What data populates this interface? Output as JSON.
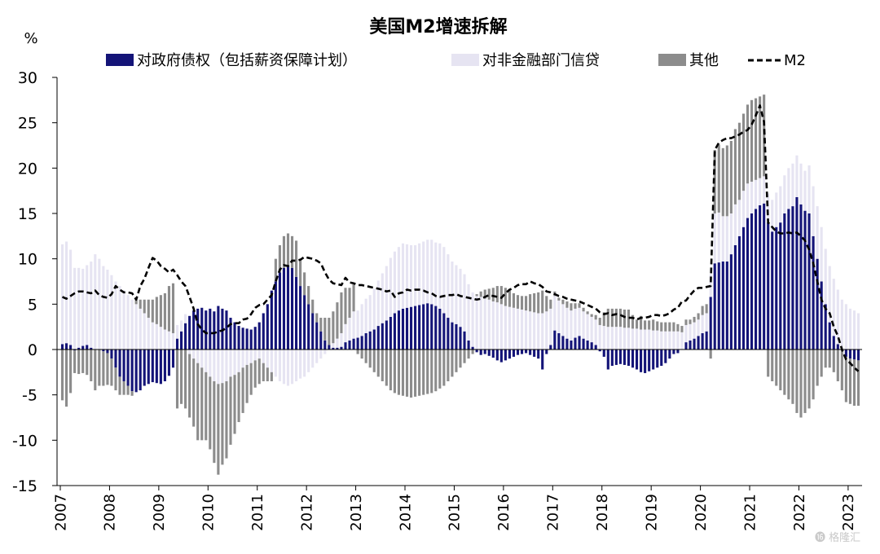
{
  "chart_data": {
    "type": "bar",
    "title": "美国M2增速拆解",
    "ylabel": "%",
    "ylim": [
      -15,
      30
    ],
    "yticks": [
      30,
      25,
      20,
      15,
      10,
      5,
      0,
      -5,
      -10,
      -15
    ],
    "xticks": [
      "2007",
      "2008",
      "2009",
      "2010",
      "2011",
      "2012",
      "2013",
      "2014",
      "2015",
      "2016",
      "2017",
      "2018",
      "2019",
      "2020",
      "2021",
      "2022",
      "2023"
    ],
    "legend_position": "top",
    "stacked": true,
    "x": [
      "2007-01",
      "2007-02",
      "2007-03",
      "2007-04",
      "2007-05",
      "2007-06",
      "2007-07",
      "2007-08",
      "2007-09",
      "2007-10",
      "2007-11",
      "2007-12",
      "2008-01",
      "2008-02",
      "2008-03",
      "2008-04",
      "2008-05",
      "2008-06",
      "2008-07",
      "2008-08",
      "2008-09",
      "2008-10",
      "2008-11",
      "2008-12",
      "2009-01",
      "2009-02",
      "2009-03",
      "2009-04",
      "2009-05",
      "2009-06",
      "2009-07",
      "2009-08",
      "2009-09",
      "2009-10",
      "2009-11",
      "2009-12",
      "2010-01",
      "2010-02",
      "2010-03",
      "2010-04",
      "2010-05",
      "2010-06",
      "2010-07",
      "2010-08",
      "2010-09",
      "2010-10",
      "2010-11",
      "2010-12",
      "2011-01",
      "2011-02",
      "2011-03",
      "2011-04",
      "2011-05",
      "2011-06",
      "2011-07",
      "2011-08",
      "2011-09",
      "2011-10",
      "2011-11",
      "2011-12",
      "2012-01",
      "2012-02",
      "2012-03",
      "2012-04",
      "2012-05",
      "2012-06",
      "2012-07",
      "2012-08",
      "2012-09",
      "2012-10",
      "2012-11",
      "2012-12",
      "2013-01",
      "2013-02",
      "2013-03",
      "2013-04",
      "2013-05",
      "2013-06",
      "2013-07",
      "2013-08",
      "2013-09",
      "2013-10",
      "2013-11",
      "2013-12",
      "2014-01",
      "2014-02",
      "2014-03",
      "2014-04",
      "2014-05",
      "2014-06",
      "2014-07",
      "2014-08",
      "2014-09",
      "2014-10",
      "2014-11",
      "2014-12",
      "2015-01",
      "2015-02",
      "2015-03",
      "2015-04",
      "2015-05",
      "2015-06",
      "2015-07",
      "2015-08",
      "2015-09",
      "2015-10",
      "2015-11",
      "2015-12",
      "2016-01",
      "2016-02",
      "2016-03",
      "2016-04",
      "2016-05",
      "2016-06",
      "2016-07",
      "2016-08",
      "2016-09",
      "2016-10",
      "2016-11",
      "2016-12",
      "2017-01",
      "2017-02",
      "2017-03",
      "2017-04",
      "2017-05",
      "2017-06",
      "2017-07",
      "2017-08",
      "2017-09",
      "2017-10",
      "2017-11",
      "2017-12",
      "2018-01",
      "2018-02",
      "2018-03",
      "2018-04",
      "2018-05",
      "2018-06",
      "2018-07",
      "2018-08",
      "2018-09",
      "2018-10",
      "2018-11",
      "2018-12",
      "2019-01",
      "2019-02",
      "2019-03",
      "2019-04",
      "2019-05",
      "2019-06",
      "2019-07",
      "2019-08",
      "2019-09",
      "2019-10",
      "2019-11",
      "2019-12",
      "2020-01",
      "2020-02",
      "2020-03",
      "2020-04",
      "2020-05",
      "2020-06",
      "2020-07",
      "2020-08",
      "2020-09",
      "2020-10",
      "2020-11",
      "2020-12",
      "2021-01",
      "2021-02",
      "2021-03",
      "2021-04",
      "2021-05",
      "2021-06",
      "2021-07",
      "2021-08",
      "2021-09",
      "2021-10",
      "2021-11",
      "2021-12",
      "2022-01",
      "2022-02",
      "2022-03",
      "2022-04",
      "2022-05",
      "2022-06",
      "2022-07",
      "2022-08",
      "2022-09",
      "2022-10",
      "2022-11",
      "2022-12",
      "2023-01",
      "2023-02",
      "2023-03"
    ],
    "series": [
      {
        "name": "对政府债权（包括薪资保障计划）",
        "kind": "bar",
        "color": "#141478",
        "values": [
          0.6,
          0.7,
          0.5,
          -0.1,
          0.2,
          0.4,
          0.5,
          0.2,
          0.0,
          0.0,
          -0.2,
          -0.4,
          -1.0,
          -2.0,
          -3.0,
          -3.5,
          -4.0,
          -4.6,
          -4.7,
          -4.5,
          -4.0,
          -3.8,
          -3.6,
          -3.7,
          -3.8,
          -3.5,
          -2.9,
          -2.0,
          1.2,
          2.0,
          2.9,
          3.7,
          4.3,
          4.5,
          4.6,
          4.3,
          4.5,
          4.2,
          4.8,
          4.5,
          4.3,
          3.5,
          3.0,
          2.6,
          2.4,
          2.3,
          2.2,
          2.5,
          3.0,
          4.0,
          5.0,
          6.5,
          7.5,
          8.5,
          9.0,
          9.3,
          9.0,
          8.0,
          7.0,
          6.0,
          5.0,
          4.0,
          3.0,
          2.0,
          1.0,
          0.5,
          0.2,
          0.2,
          0.3,
          0.8,
          1.0,
          1.2,
          1.3,
          1.5,
          1.8,
          2.0,
          2.2,
          2.6,
          2.9,
          3.2,
          3.6,
          4.0,
          4.3,
          4.5,
          4.6,
          4.7,
          4.8,
          4.9,
          5.0,
          5.1,
          5.0,
          4.8,
          4.5,
          4.0,
          3.5,
          3.0,
          2.8,
          2.5,
          2.0,
          1.0,
          0.3,
          -0.3,
          -0.6,
          -0.5,
          -0.7,
          -0.9,
          -1.2,
          -1.4,
          -1.2,
          -1.0,
          -0.8,
          -0.6,
          -0.5,
          -0.4,
          -0.6,
          -0.8,
          -1.0,
          -2.2,
          -0.5,
          0.5,
          2.1,
          1.8,
          1.5,
          1.2,
          1.0,
          1.3,
          1.5,
          1.2,
          1.0,
          0.8,
          0.5,
          -0.2,
          -0.8,
          -2.2,
          -1.8,
          -1.7,
          -1.6,
          -1.7,
          -1.8,
          -2.0,
          -2.2,
          -2.5,
          -2.6,
          -2.4,
          -2.2,
          -2.0,
          -1.8,
          -1.5,
          -1.0,
          -0.5,
          -0.4,
          0.0,
          0.8,
          1.0,
          1.2,
          1.5,
          1.8,
          2.0,
          5.8,
          9.5,
          9.6,
          9.7,
          9.7,
          10.5,
          11.5,
          12.5,
          13.5,
          14.5,
          15.0,
          15.5,
          15.9,
          16.1,
          14.0,
          13.0,
          13.5,
          14.0,
          15.0,
          15.5,
          15.8,
          16.8,
          16.0,
          15.3,
          15.0,
          12.5,
          10.0,
          7.5,
          5.0,
          3.0,
          1.5,
          0.6,
          0.0,
          -0.8,
          -1.0,
          -1.1,
          -1.2
        ]
      },
      {
        "name": "对非金融部门信贷",
        "kind": "bar",
        "color": "#e6e4f2",
        "values": [
          11.0,
          11.2,
          10.5,
          9.0,
          8.8,
          8.5,
          8.8,
          9.5,
          10.5,
          10.0,
          9.2,
          8.8,
          8.2,
          7.5,
          7.0,
          6.5,
          6.0,
          5.5,
          5.0,
          4.5,
          4.0,
          3.5,
          3.0,
          2.8,
          2.5,
          2.2,
          2.0,
          1.8,
          1.5,
          1.2,
          1.0,
          -0.5,
          -1.0,
          -1.5,
          -2.0,
          -2.5,
          -3.0,
          -3.5,
          -3.8,
          -3.7,
          -3.5,
          -3.0,
          -2.8,
          -2.5,
          -2.0,
          -1.7,
          -1.5,
          -1.2,
          -1.0,
          -1.5,
          -2.0,
          -2.5,
          -3.0,
          -3.5,
          -3.8,
          -4.0,
          -3.8,
          -3.5,
          -3.2,
          -3.0,
          -2.5,
          -2.0,
          -1.5,
          -1.0,
          -0.5,
          0.0,
          0.5,
          1.0,
          1.5,
          2.0,
          2.5,
          3.0,
          3.0,
          3.5,
          3.8,
          4.0,
          4.5,
          5.0,
          5.5,
          6.0,
          6.5,
          6.8,
          7.0,
          7.2,
          7.0,
          6.8,
          6.7,
          6.8,
          6.9,
          7.0,
          7.1,
          7.0,
          7.2,
          7.3,
          7.0,
          6.7,
          6.5,
          6.4,
          6.3,
          6.2,
          6.0,
          5.9,
          5.8,
          5.6,
          5.5,
          5.3,
          5.2,
          5.0,
          4.8,
          4.7,
          4.6,
          4.5,
          4.4,
          4.3,
          4.2,
          4.1,
          4.0,
          4.0,
          4.2,
          4.0,
          3.8,
          3.6,
          3.5,
          3.4,
          3.3,
          3.2,
          3.1,
          3.0,
          2.9,
          2.8,
          2.8,
          2.7,
          2.6,
          2.5,
          2.5,
          2.5,
          2.5,
          2.4,
          2.4,
          2.3,
          2.3,
          2.2,
          2.2,
          2.2,
          2.1,
          2.1,
          2.0,
          2.0,
          2.0,
          2.0,
          2.0,
          1.9,
          1.9,
          1.8,
          1.8,
          1.8,
          2.0,
          2.0,
          2.5,
          5.5,
          5.5,
          5.0,
          5.0,
          4.5,
          4.5,
          4.0,
          4.0,
          3.8,
          3.5,
          3.2,
          3.0,
          3.0,
          3.2,
          3.5,
          3.8,
          4.0,
          4.2,
          4.5,
          4.7,
          4.6,
          4.5,
          4.4,
          5.3,
          5.5,
          5.8,
          6.0,
          6.1,
          6.2,
          6.3,
          6.0,
          5.5,
          5.0,
          4.5,
          4.3,
          4.0
        ]
      },
      {
        "name": "其他",
        "kind": "bar",
        "color": "#8c8c8c",
        "values": [
          -5.6,
          -6.3,
          -4.8,
          -2.5,
          -2.7,
          -2.6,
          -2.8,
          -3.5,
          -4.5,
          -4.0,
          -3.8,
          -3.5,
          -3.0,
          -2.5,
          -2.0,
          -1.5,
          -1.0,
          -0.5,
          0.5,
          1.0,
          1.5,
          2.0,
          2.5,
          3.0,
          3.5,
          4.0,
          5.0,
          5.5,
          -6.5,
          -6.0,
          -6.5,
          -7.0,
          -7.5,
          -8.5,
          -8.0,
          -7.5,
          -8.0,
          -9.0,
          -10.0,
          -9.0,
          -8.5,
          -7.5,
          -6.5,
          -5.5,
          -5.0,
          -4.2,
          -3.5,
          -3.0,
          -2.8,
          -2.0,
          -1.5,
          -1.0,
          2.5,
          3.0,
          3.5,
          3.5,
          3.5,
          4.0,
          3.0,
          2.5,
          2.0,
          1.5,
          1.0,
          1.5,
          2.5,
          3.0,
          3.5,
          4.0,
          4.5,
          4.0,
          3.3,
          3.0,
          -0.5,
          -1.0,
          -1.5,
          -2.0,
          -2.5,
          -3.0,
          -3.5,
          -4.0,
          -4.5,
          -4.8,
          -5.0,
          -5.1,
          -5.2,
          -5.3,
          -5.2,
          -5.1,
          -5.0,
          -4.9,
          -4.8,
          -4.6,
          -4.3,
          -4.0,
          -3.5,
          -3.0,
          -2.5,
          -2.0,
          -1.5,
          -1.0,
          -0.5,
          0.2,
          0.6,
          1.0,
          1.2,
          1.5,
          1.8,
          2.0,
          2.0,
          1.8,
          1.6,
          1.5,
          1.5,
          1.6,
          1.9,
          2.1,
          2.3,
          2.5,
          1.7,
          1.0,
          0.5,
          0.3,
          0.5,
          0.7,
          0.8,
          0.6,
          0.5,
          0.4,
          0.3,
          0.3,
          0.5,
          0.8,
          1.5,
          2.0,
          2.0,
          2.0,
          2.0,
          2.0,
          2.0,
          1.5,
          1.0,
          1.5,
          1.0,
          1.0,
          1.2,
          1.0,
          1.0,
          1.0,
          1.0,
          1.0,
          0.8,
          0.7,
          0.6,
          0.5,
          0.6,
          0.7,
          1.0,
          1.0,
          -1.0,
          7.0,
          7.5,
          7.5,
          7.8,
          8.0,
          8.3,
          8.5,
          8.5,
          8.7,
          9.0,
          9.0,
          9.0,
          9.0,
          -3.0,
          -3.5,
          -4.0,
          -4.5,
          -5.0,
          -5.5,
          -6.0,
          -7.0,
          -7.5,
          -7.0,
          -6.5,
          -5.5,
          -4.0,
          -3.0,
          -2.0,
          -2.0,
          -2.5,
          -3.5,
          -4.5,
          -5.0,
          -5.0,
          -5.1,
          -5.0
        ]
      },
      {
        "name": "M2",
        "kind": "line",
        "style": "dashed",
        "color": "#000000",
        "values": [
          5.8,
          5.6,
          5.9,
          6.2,
          6.4,
          6.4,
          6.3,
          6.2,
          6.5,
          6.0,
          5.8,
          5.7,
          6.1,
          7.0,
          6.6,
          6.3,
          6.3,
          6.2,
          5.5,
          7.0,
          7.8,
          9.0,
          10.1,
          9.8,
          9.2,
          8.9,
          8.5,
          8.8,
          8.2,
          7.5,
          7.0,
          5.8,
          4.5,
          2.8,
          2.2,
          1.8,
          1.8,
          1.8,
          2.0,
          2.1,
          2.4,
          2.8,
          2.9,
          2.9,
          3.3,
          3.4,
          3.9,
          4.6,
          4.9,
          5.0,
          5.5,
          6.0,
          7.5,
          8.8,
          9.3,
          9.2,
          9.8,
          9.8,
          9.9,
          10.2,
          10.1,
          10.0,
          9.8,
          9.5,
          8.5,
          7.7,
          7.3,
          7.2,
          7.1,
          7.9,
          7.4,
          7.3,
          7.1,
          7.1,
          7.0,
          6.9,
          6.8,
          6.7,
          6.6,
          6.4,
          6.5,
          5.8,
          6.2,
          6.3,
          6.6,
          6.5,
          6.6,
          6.6,
          6.5,
          6.3,
          6.2,
          5.9,
          5.8,
          5.9,
          6.0,
          6.0,
          6.1,
          5.9,
          5.8,
          5.7,
          5.6,
          5.5,
          5.6,
          5.8,
          6.0,
          5.9,
          5.8,
          5.7,
          6.2,
          6.6,
          6.8,
          7.1,
          7.2,
          7.2,
          7.5,
          7.3,
          7.2,
          6.9,
          6.4,
          6.3,
          6.1,
          5.9,
          5.8,
          5.6,
          5.5,
          5.4,
          5.3,
          5.1,
          4.9,
          4.7,
          4.5,
          4.1,
          3.9,
          4.0,
          3.8,
          3.9,
          3.8,
          3.6,
          3.5,
          3.5,
          3.3,
          3.5,
          3.5,
          3.6,
          3.8,
          3.8,
          3.7,
          3.8,
          4.0,
          4.4,
          4.6,
          5.3,
          5.4,
          6.0,
          6.5,
          6.8,
          6.8,
          6.9,
          7.0,
          22.0,
          22.8,
          23.1,
          23.3,
          23.3,
          23.5,
          23.7,
          24.0,
          24.2,
          24.8,
          25.8,
          26.9,
          25.1,
          14.0,
          13.5,
          13.0,
          12.8,
          12.8,
          12.9,
          12.8,
          12.9,
          12.5,
          12.0,
          11.0,
          9.5,
          7.5,
          5.5,
          4.5,
          4.0,
          2.5,
          1.5,
          0.0,
          -1.1,
          -1.5,
          -2.0,
          -2.4
        ]
      }
    ]
  }
}
